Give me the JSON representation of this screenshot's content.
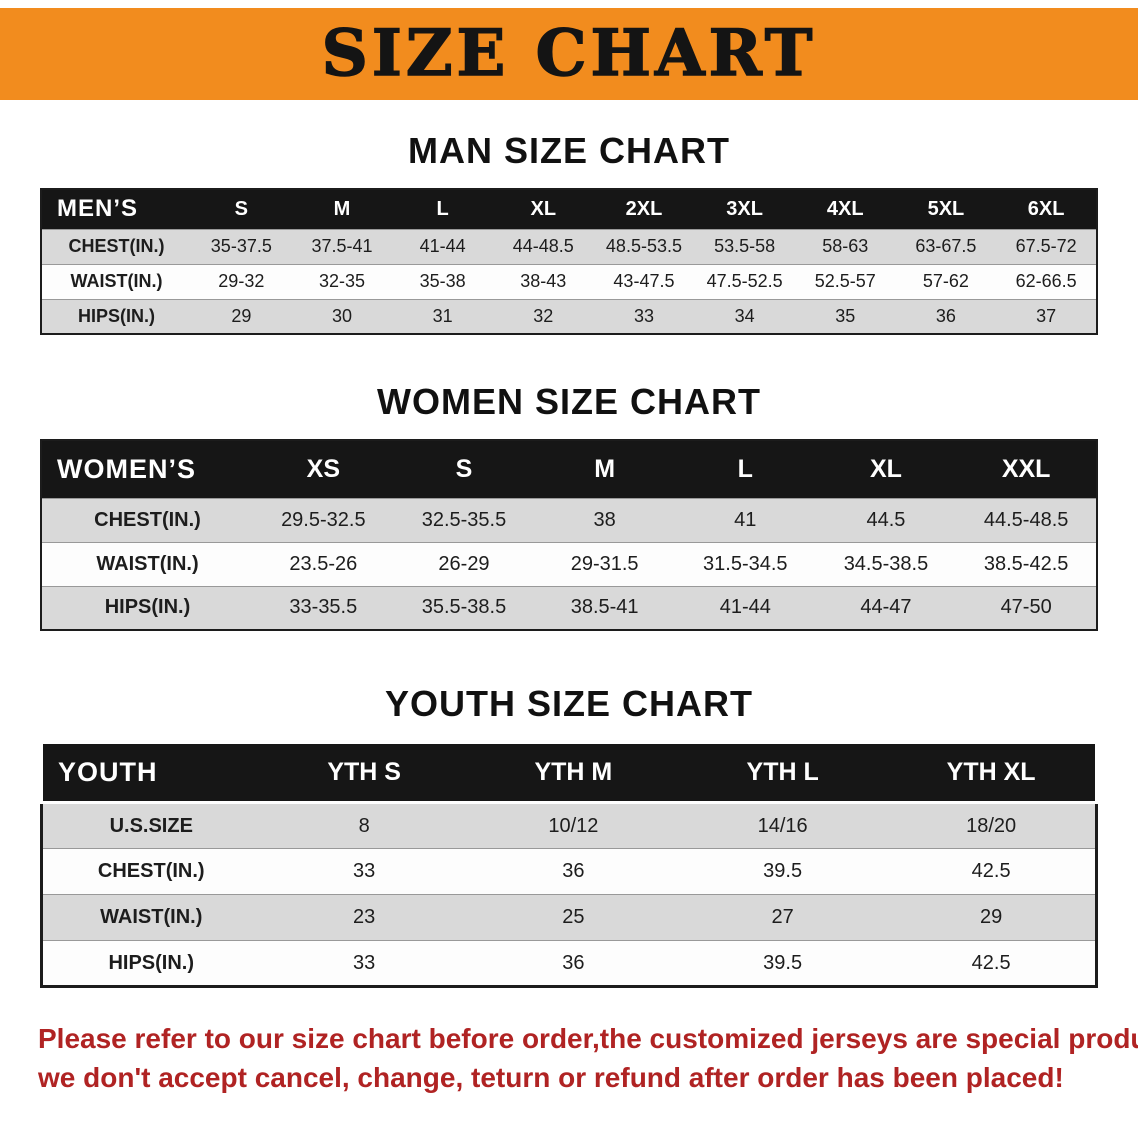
{
  "banner": {
    "title": "SIZE CHART",
    "background_color": "#F28C1E",
    "text_color": "#141414"
  },
  "sections": [
    {
      "heading": "MAN SIZE CHART",
      "table": {
        "header": [
          "MEN’S",
          "S",
          "M",
          "L",
          "XL",
          "2XL",
          "3XL",
          "4XL",
          "5XL",
          "6XL"
        ],
        "rows": [
          [
            "CHEST(IN.)",
            "35-37.5",
            "37.5-41",
            "41-44",
            "44-48.5",
            "48.5-53.5",
            "53.5-58",
            "58-63",
            "63-67.5",
            "67.5-72"
          ],
          [
            "WAIST(IN.)",
            "29-32",
            "32-35",
            "35-38",
            "38-43",
            "43-47.5",
            "47.5-52.5",
            "52.5-57",
            "57-62",
            "62-66.5"
          ],
          [
            "HIPS(IN.)",
            "29",
            "30",
            "31",
            "32",
            "33",
            "34",
            "35",
            "36",
            "37"
          ]
        ]
      }
    },
    {
      "heading": "WOMEN SIZE CHART",
      "table": {
        "header": [
          "WOMEN’S",
          "XS",
          "S",
          "M",
          "L",
          "XL",
          "XXL"
        ],
        "rows": [
          [
            "CHEST(IN.)",
            "29.5-32.5",
            "32.5-35.5",
            "38",
            "41",
            "44.5",
            "44.5-48.5"
          ],
          [
            "WAIST(IN.)",
            "23.5-26",
            "26-29",
            "29-31.5",
            "31.5-34.5",
            "34.5-38.5",
            "38.5-42.5"
          ],
          [
            "HIPS(IN.)",
            "33-35.5",
            "35.5-38.5",
            "38.5-41",
            "41-44",
            "44-47",
            "47-50"
          ]
        ]
      }
    },
    {
      "heading": "YOUTH SIZE CHART",
      "table": {
        "header": [
          "YOUTH",
          "YTH S",
          "YTH M",
          "YTH L",
          "YTH XL"
        ],
        "rows": [
          [
            "U.S.SIZE",
            "8",
            "10/12",
            "14/16",
            "18/20"
          ],
          [
            "CHEST(IN.)",
            "33",
            "36",
            "39.5",
            "42.5"
          ],
          [
            "WAIST(IN.)",
            "23",
            "25",
            "27",
            "29"
          ],
          [
            "HIPS(IN.)",
            "33",
            "36",
            "39.5",
            "42.5"
          ]
        ]
      }
    }
  ],
  "notice": {
    "text_color": "#b02323",
    "line1": "Please refer to our size chart before order,the customized jerseys are special products,",
    "line2": "we don't accept cancel, change, teturn or refund after order has been placed!"
  }
}
